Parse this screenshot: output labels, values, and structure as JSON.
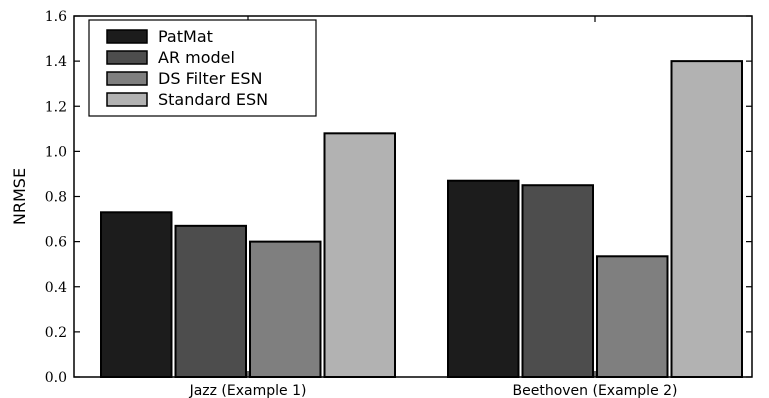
{
  "chart_data": {
    "type": "bar",
    "title": "",
    "xlabel": "",
    "ylabel": "NRMSE",
    "ylim": [
      0,
      1.6
    ],
    "yticks": [
      "0.0",
      "0.2",
      "0.4",
      "0.6",
      "0.8",
      "1.0",
      "1.2",
      "1.4",
      "1.6"
    ],
    "categories": [
      "Jazz (Example 1)",
      "Beethoven (Example 2)"
    ],
    "series": [
      {
        "name": "PatMat",
        "color": "#1c1c1c",
        "values": [
          0.73,
          0.87
        ]
      },
      {
        "name": "AR model",
        "color": "#4d4d4d",
        "values": [
          0.67,
          0.85
        ]
      },
      {
        "name": "DS Filter ESN",
        "color": "#7f7f7f",
        "values": [
          0.6,
          0.535
        ]
      },
      {
        "name": "Standard ESN",
        "color": "#b2b2b2",
        "values": [
          1.08,
          1.4
        ]
      }
    ],
    "legend": "top-left",
    "grid": false
  }
}
